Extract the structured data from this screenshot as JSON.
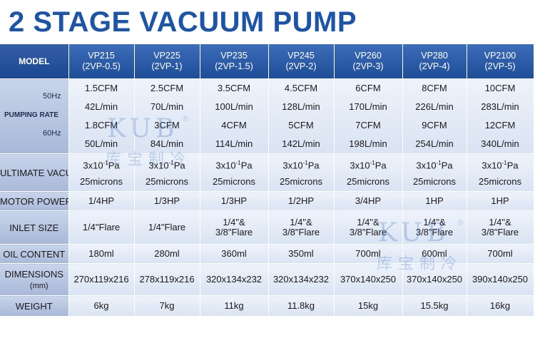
{
  "title": "2 STAGE VACUUM PUMP",
  "header": {
    "label": "MODEL",
    "models": [
      {
        "name": "VP215",
        "code": "(2VP-0.5)"
      },
      {
        "name": "VP225",
        "code": "(2VP-1)"
      },
      {
        "name": "VP235",
        "code": "(2VP-1.5)"
      },
      {
        "name": "VP245",
        "code": "(2VP-2)"
      },
      {
        "name": "VP260",
        "code": "(2VP-3)"
      },
      {
        "name": "VP280",
        "code": "(2VP-4)"
      },
      {
        "name": "VP2100",
        "code": "(2VP-5)"
      }
    ]
  },
  "pumping": {
    "label": "PUMPING RATE",
    "hz50": "50Hz",
    "hz60": "60Hz",
    "cfm50": [
      "1.5CFM",
      "2.5CFM",
      "3.5CFM",
      "4.5CFM",
      "6CFM",
      "8CFM",
      "10CFM"
    ],
    "lmin50": [
      "42L/min",
      "70L/min",
      "100L/min",
      "128L/min",
      "170L/min",
      "226L/min",
      "283L/min"
    ],
    "cfm60": [
      "1.8CFM",
      "3CFM",
      "4CFM",
      "5CFM",
      "7CFM",
      "9CFM",
      "12CFM"
    ],
    "lmin60": [
      "50L/min",
      "84L/min",
      "114L/min",
      "142L/min",
      "198L/min",
      "254L/min",
      "340L/min"
    ]
  },
  "ultimate": {
    "label": "ULTIMATE VACUUM",
    "pa_base": "3x10",
    "pa_exp": "-1",
    "pa_unit": "Pa",
    "microns": "25microns"
  },
  "motor": {
    "label": "MOTOR POWER",
    "values": [
      "1/4HP",
      "1/3HP",
      "1/3HP",
      "1/2HP",
      "3/4HP",
      "1HP",
      "1HP"
    ]
  },
  "inlet": {
    "label": "INLET SIZE",
    "values": [
      {
        "l1": "1/4\"Flare",
        "l2": ""
      },
      {
        "l1": "1/4\"Flare",
        "l2": ""
      },
      {
        "l1": "1/4\"&",
        "l2": "3/8\"Flare"
      },
      {
        "l1": "1/4\"&",
        "l2": "3/8\"Flare"
      },
      {
        "l1": "1/4\"&",
        "l2": "3/8\"Flare"
      },
      {
        "l1": "1/4\"&",
        "l2": "3/8\"Flare"
      },
      {
        "l1": "1/4\"&",
        "l2": "3/8\"Flare"
      }
    ]
  },
  "oil": {
    "label": "OIL CONTENT",
    "values": [
      "180ml",
      "280ml",
      "360ml",
      "350ml",
      "700ml",
      "600ml",
      "700ml"
    ]
  },
  "dimensions": {
    "label": "DIMENSIONS",
    "unit": "(mm)",
    "values": [
      "270x119x216",
      "278x119x216",
      "320x134x232",
      "320x134x232",
      "370x140x250",
      "370x140x250",
      "390x140x250"
    ]
  },
  "weight": {
    "label": "WEIGHT",
    "values": [
      "6kg",
      "7kg",
      "11kg",
      "11.8kg",
      "15kg",
      "15.5kg",
      "16kg"
    ]
  },
  "watermark": {
    "brand": "KUB",
    "cn": "库宝制冷",
    "reg": "®"
  }
}
